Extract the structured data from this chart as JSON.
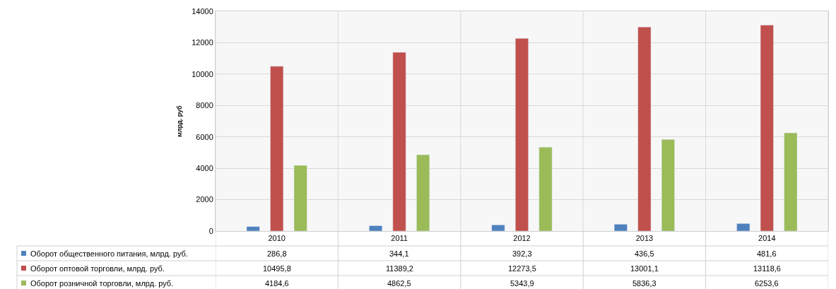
{
  "chart_data": {
    "type": "bar",
    "ylabel": "млрд. руб",
    "categories": [
      "2010",
      "2011",
      "2012",
      "2013",
      "2014"
    ],
    "series": [
      {
        "name": "Оборот общественного питания, млрд. руб.",
        "color": "#4f81bd",
        "values": [
          286.8,
          344.1,
          392.3,
          436.5,
          481.6
        ],
        "value_labels": [
          "286,8",
          "344,1",
          "392,3",
          "436,5",
          "481,6"
        ]
      },
      {
        "name": "Оборот оптовой торговли, млрд. руб.",
        "color": "#c0504d",
        "values": [
          10495.8,
          11389.2,
          12273.5,
          13001.1,
          13118.6
        ],
        "value_labels": [
          "10495,8",
          "11389,2",
          "12273,5",
          "13001,1",
          "13118,6"
        ]
      },
      {
        "name": "Оборот розничной торговли, млрд. руб.",
        "color": "#9bbb59",
        "values": [
          4184.6,
          4862.5,
          5343.9,
          5836.3,
          6253.6
        ],
        "value_labels": [
          "4184,6",
          "4862,5",
          "5343,9",
          "5836,3",
          "6253,6"
        ]
      }
    ],
    "ylim": [
      0,
      14000
    ],
    "yticks": [
      0,
      2000,
      4000,
      6000,
      8000,
      10000,
      12000,
      14000
    ],
    "grid": true,
    "legend": "bottom"
  }
}
